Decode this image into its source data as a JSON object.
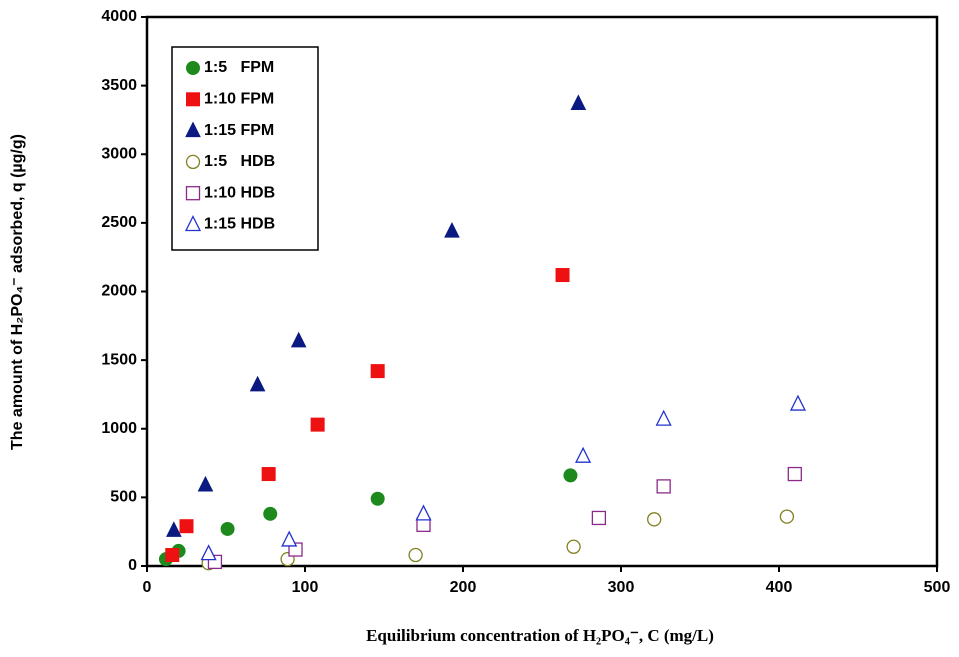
{
  "chart_data": {
    "type": "scatter",
    "x_label": "Equilibrium  concentration of  H₂PO₄⁻,  C  (mg/L)",
    "y_label": "The amount of H₂PO₄⁻ adsorbed, q (µg/g)",
    "xlim": [
      0,
      500
    ],
    "xticks": [
      0,
      100,
      200,
      300,
      400,
      500
    ],
    "ylim": [
      0,
      4000
    ],
    "yticks": [
      0,
      500,
      1000,
      1500,
      2000,
      2500,
      3000,
      3500,
      4000
    ],
    "legend": "upper left",
    "series": [
      {
        "name": "1:5   FPM",
        "color": "#1e8a1e",
        "marker": "circle",
        "filled": true,
        "x": [
          12,
          20,
          51,
          78,
          146,
          268
        ],
        "values": [
          50,
          110,
          270,
          380,
          490,
          660
        ]
      },
      {
        "name": "1:10 FPM",
        "color": "#ee1111",
        "marker": "square",
        "filled": true,
        "x": [
          16,
          25,
          77,
          108,
          146,
          263
        ],
        "values": [
          80,
          290,
          670,
          1030,
          1420,
          2120
        ]
      },
      {
        "name": "1:15 FPM",
        "color": "#0a1a80",
        "marker": "triangle",
        "filled": true,
        "x": [
          17,
          37,
          70,
          96,
          193,
          273
        ],
        "values": [
          260,
          590,
          1320,
          1640,
          2440,
          3370
        ]
      },
      {
        "name": "1:5   HDB",
        "color": "#808020",
        "marker": "circle",
        "filled": false,
        "x": [
          39,
          89,
          170,
          270,
          321,
          405
        ],
        "values": [
          20,
          50,
          80,
          140,
          340,
          360
        ]
      },
      {
        "name": "1:10 HDB",
        "color": "#8a2a8a",
        "marker": "square",
        "filled": false,
        "x": [
          43,
          94,
          175,
          286,
          327,
          410
        ],
        "values": [
          30,
          120,
          300,
          350,
          580,
          670
        ]
      },
      {
        "name": "1:15 HDB",
        "color": "#2233cc",
        "marker": "triangle",
        "filled": false,
        "x": [
          39,
          90,
          175,
          276,
          327,
          412
        ],
        "values": [
          90,
          190,
          380,
          800,
          1070,
          1180
        ]
      }
    ]
  }
}
